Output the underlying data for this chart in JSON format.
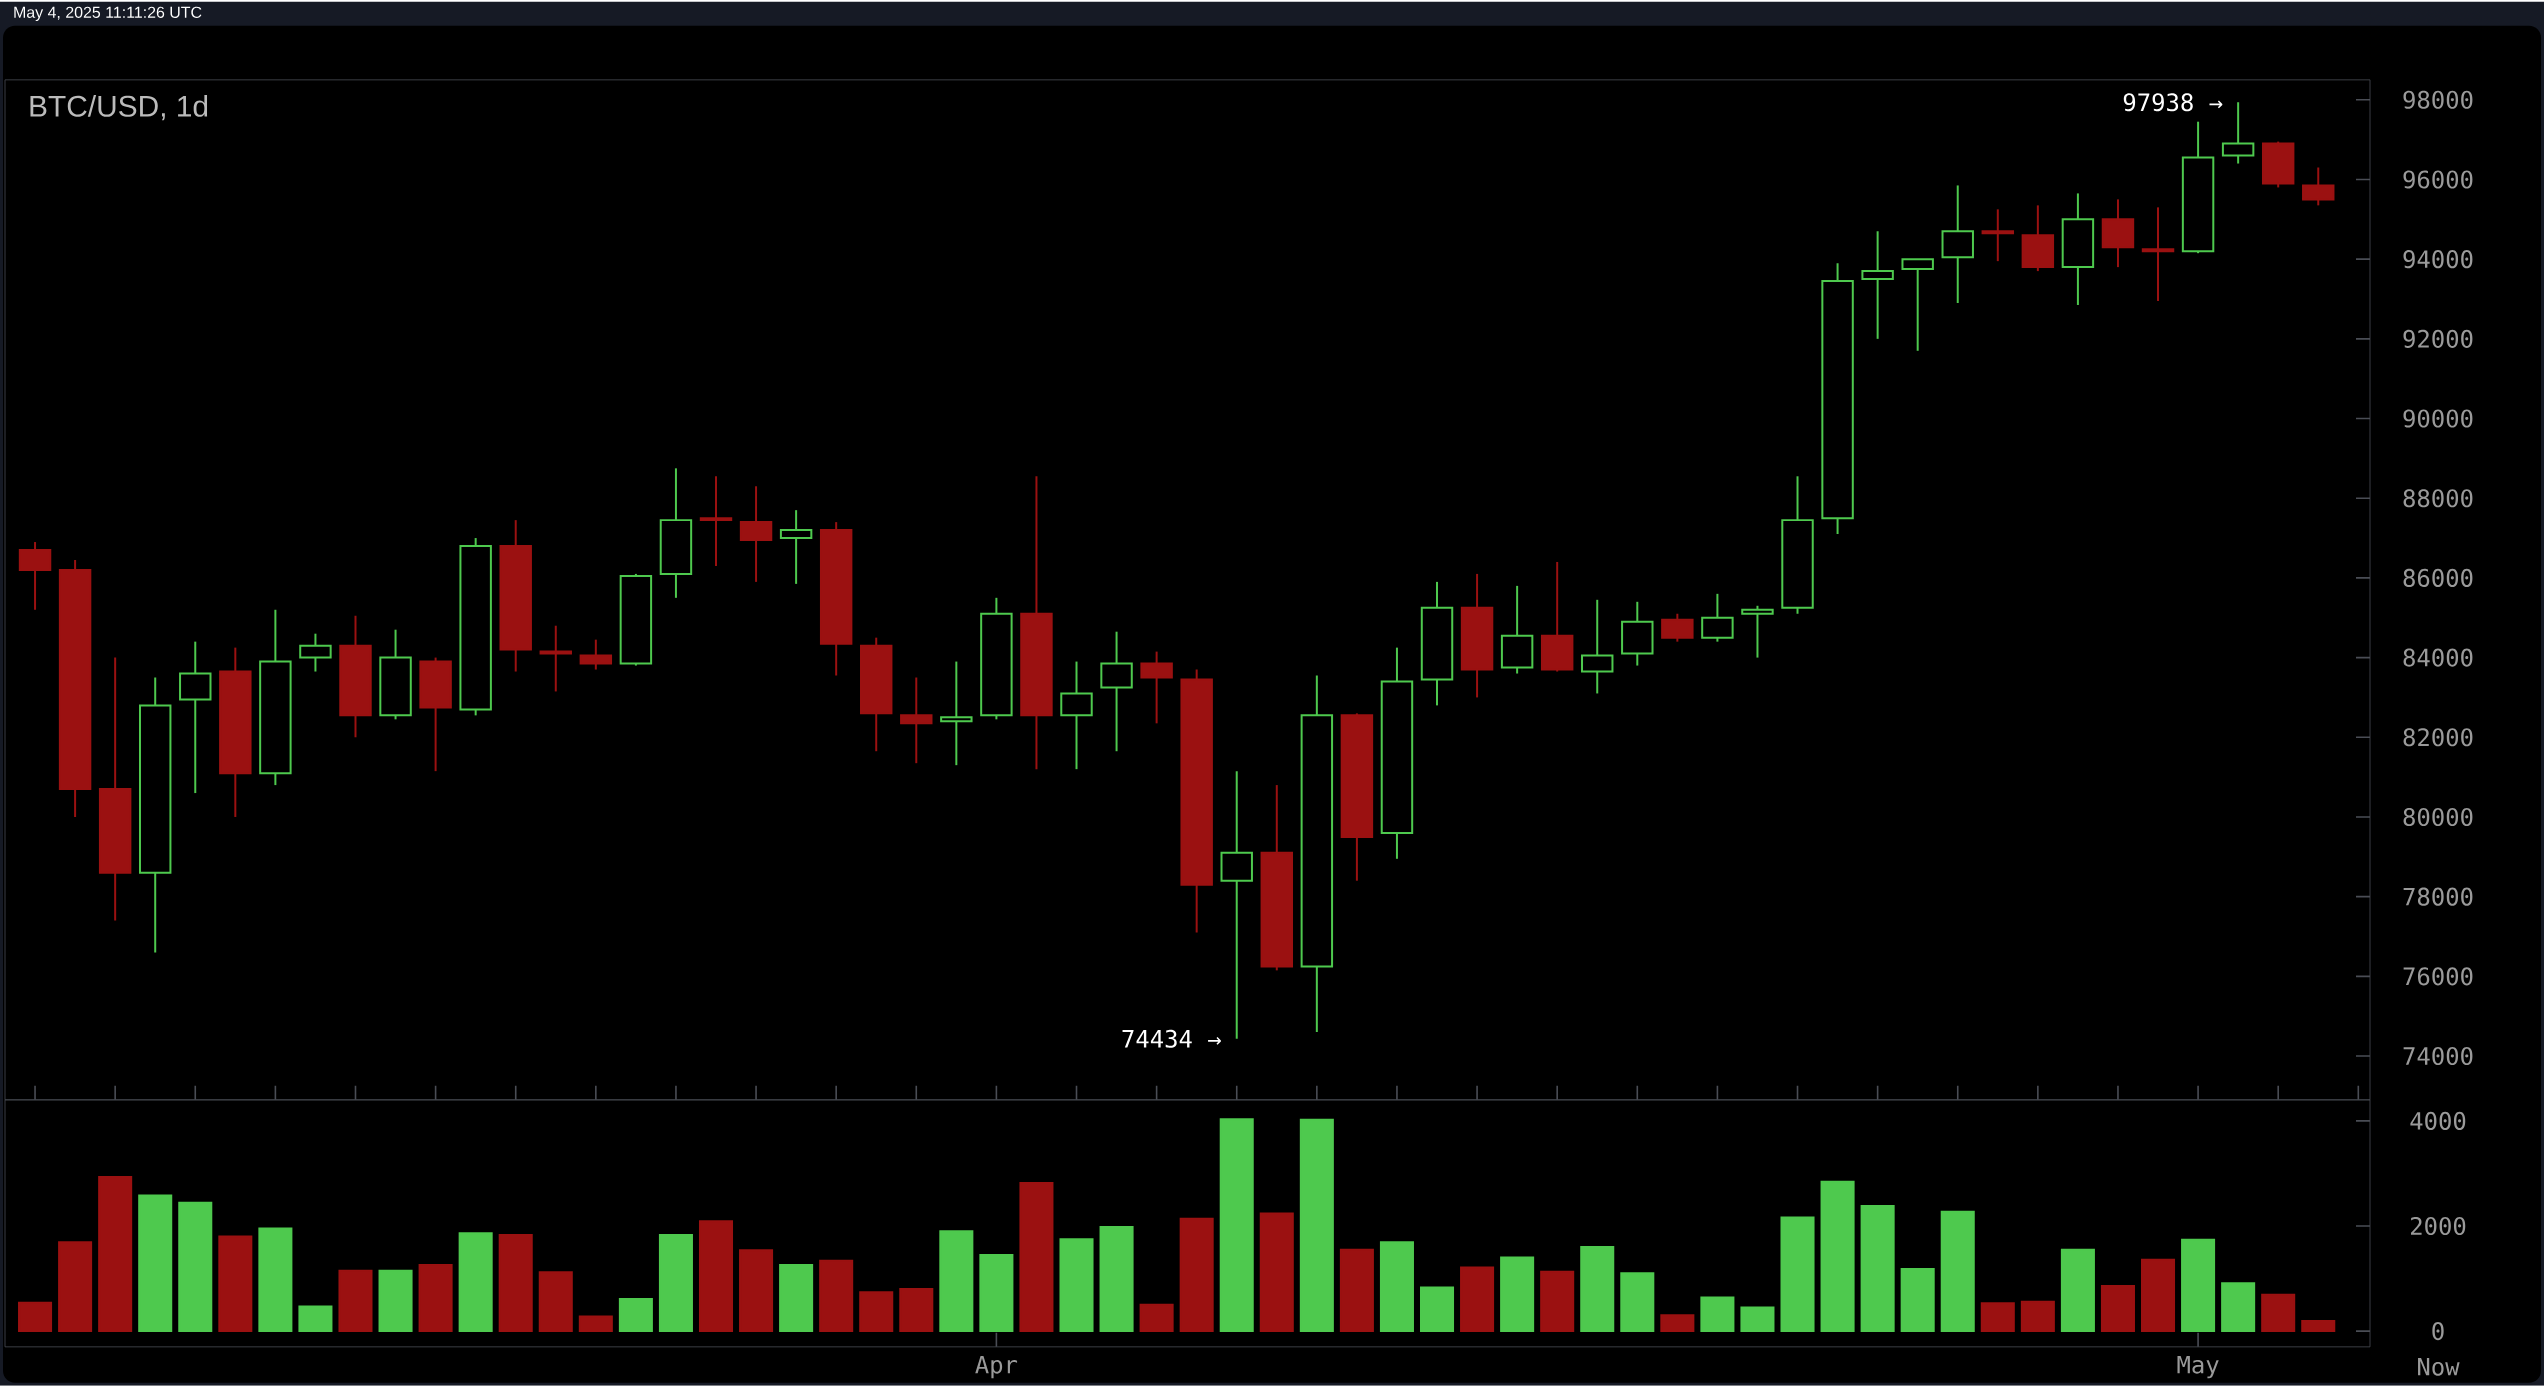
{
  "chart_data": [
    {
      "type": "candlestick",
      "title": "BTC/USD, 1d",
      "subtitle": "May 4, 2025 11:11:26 UTC",
      "x": [
        "2025-03-08",
        "2025-03-09",
        "2025-03-10",
        "2025-03-11",
        "2025-03-12",
        "2025-03-13",
        "2025-03-14",
        "2025-03-15",
        "2025-03-16",
        "2025-03-17",
        "2025-03-18",
        "2025-03-19",
        "2025-03-20",
        "2025-03-21",
        "2025-03-22",
        "2025-03-23",
        "2025-03-24",
        "2025-03-25",
        "2025-03-26",
        "2025-03-27",
        "2025-03-28",
        "2025-03-29",
        "2025-03-30",
        "2025-03-31",
        "2025-04-01",
        "2025-04-02",
        "2025-04-03",
        "2025-04-04",
        "2025-04-05",
        "2025-04-06",
        "2025-04-07",
        "2025-04-08",
        "2025-04-09",
        "2025-04-10",
        "2025-04-11",
        "2025-04-12",
        "2025-04-13",
        "2025-04-14",
        "2025-04-15",
        "2025-04-16",
        "2025-04-17",
        "2025-04-18",
        "2025-04-19",
        "2025-04-20",
        "2025-04-21",
        "2025-04-22",
        "2025-04-23",
        "2025-04-24",
        "2025-04-25",
        "2025-04-26",
        "2025-04-27",
        "2025-04-28",
        "2025-04-29",
        "2025-04-30",
        "2025-05-01",
        "2025-05-02",
        "2025-05-03",
        "2025-05-04"
      ],
      "ohlc": [
        [
          86700,
          86900,
          85200,
          86200
        ],
        [
          86200,
          86450,
          80000,
          80700
        ],
        [
          80700,
          84000,
          77400,
          78600
        ],
        [
          78600,
          83500,
          76600,
          82800
        ],
        [
          82950,
          84400,
          80600,
          83600
        ],
        [
          83650,
          84250,
          80000,
          81100
        ],
        [
          81100,
          85200,
          80800,
          83900
        ],
        [
          84000,
          84600,
          83650,
          84300
        ],
        [
          84300,
          85050,
          82000,
          82550
        ],
        [
          82550,
          84700,
          82450,
          84000
        ],
        [
          83900,
          84000,
          81150,
          82750
        ],
        [
          82700,
          87000,
          82550,
          86800
        ],
        [
          86800,
          87450,
          83650,
          84200
        ],
        [
          84150,
          84800,
          83150,
          84100
        ],
        [
          84050,
          84450,
          83700,
          83850
        ],
        [
          83850,
          86100,
          83800,
          86050
        ],
        [
          86100,
          88750,
          85500,
          87450
        ],
        [
          87500,
          88550,
          86300,
          87450
        ],
        [
          87400,
          88300,
          85900,
          86950
        ],
        [
          87000,
          87700,
          85850,
          87200
        ],
        [
          87200,
          87400,
          83550,
          84350
        ],
        [
          84300,
          84500,
          81650,
          82600
        ],
        [
          82550,
          83500,
          81350,
          82350
        ],
        [
          82400,
          83900,
          81300,
          82500
        ],
        [
          82550,
          85500,
          82450,
          85100
        ],
        [
          85100,
          88550,
          81200,
          82550
        ],
        [
          82550,
          83900,
          81200,
          83100
        ],
        [
          83250,
          84650,
          81650,
          83850
        ],
        [
          83850,
          84150,
          82350,
          83500
        ],
        [
          83450,
          83700,
          77100,
          78300
        ],
        [
          78400,
          81150,
          74434,
          79100
        ],
        [
          79100,
          80800,
          76150,
          76250
        ],
        [
          76250,
          83550,
          74600,
          82550
        ],
        [
          82550,
          82600,
          78400,
          79500
        ],
        [
          79600,
          84250,
          78950,
          83400
        ],
        [
          83450,
          85900,
          82800,
          85250
        ],
        [
          85250,
          86100,
          83000,
          83700
        ],
        [
          83750,
          85800,
          83600,
          84550
        ],
        [
          84550,
          86400,
          83650,
          83700
        ],
        [
          83650,
          85450,
          83100,
          84050
        ],
        [
          84100,
          85400,
          83800,
          84900
        ],
        [
          84950,
          85100,
          84400,
          84500
        ],
        [
          84500,
          85600,
          84400,
          85000
        ],
        [
          85100,
          85300,
          84000,
          85200
        ],
        [
          85250,
          88550,
          85100,
          87450
        ],
        [
          87500,
          93900,
          87100,
          93450
        ],
        [
          93500,
          94700,
          92000,
          93700
        ],
        [
          93750,
          94000,
          91700,
          94000
        ],
        [
          94050,
          95850,
          92900,
          94700
        ],
        [
          94700,
          95250,
          93950,
          94650
        ],
        [
          94600,
          95350,
          93700,
          93800
        ],
        [
          93800,
          95650,
          92850,
          95000
        ],
        [
          95000,
          95500,
          93800,
          94300
        ],
        [
          94250,
          95300,
          92950,
          94200
        ],
        [
          94200,
          97450,
          94150,
          96550
        ],
        [
          96600,
          97938,
          96400,
          96900
        ],
        [
          96900,
          96950,
          95800,
          95900
        ],
        [
          95850,
          96300,
          95350,
          95500
        ]
      ],
      "colors": [
        "#9b1111",
        "#9b1111",
        "#9b1111",
        "#4ec94e",
        "#4ec94e",
        "#9b1111",
        "#4ec94e",
        "#4ec94e",
        "#9b1111",
        "#4ec94e",
        "#9b1111",
        "#4ec94e",
        "#9b1111",
        "#9b1111",
        "#9b1111",
        "#4ec94e",
        "#4ec94e",
        "#9b1111",
        "#9b1111",
        "#4ec94e",
        "#9b1111",
        "#9b1111",
        "#9b1111",
        "#4ec94e",
        "#4ec94e",
        "#9b1111",
        "#4ec94e",
        "#4ec94e",
        "#9b1111",
        "#9b1111",
        "#4ec94e",
        "#9b1111",
        "#4ec94e",
        "#9b1111",
        "#4ec94e",
        "#4ec94e",
        "#9b1111",
        "#4ec94e",
        "#9b1111",
        "#4ec94e",
        "#4ec94e",
        "#9b1111",
        "#4ec94e",
        "#4ec94e",
        "#4ec94e",
        "#4ec94e",
        "#4ec94e",
        "#4ec94e",
        "#4ec94e",
        "#9b1111",
        "#9b1111",
        "#4ec94e",
        "#9b1111",
        "#9b1111",
        "#4ec94e",
        "#4ec94e",
        "#9b1111",
        "#9b1111"
      ],
      "xlim": [
        "2025-03-07T06:00",
        "2025-05-05T07:00"
      ],
      "ylim": [
        72900,
        98500
      ],
      "yticks": [
        74000,
        76000,
        78000,
        80000,
        82000,
        84000,
        86000,
        88000,
        90000,
        92000,
        94000,
        96000,
        98000
      ],
      "tick_labels": "y",
      "annotations": [
        {
          "text": "97938 →",
          "x": "2025-05-02",
          "y": 97938
        },
        {
          "text": "74434 →",
          "x": "2025-04-07",
          "y": 74434
        }
      ]
    },
    {
      "type": "bar",
      "x": [
        "2025-03-08",
        "2025-03-09",
        "2025-03-10",
        "2025-03-11",
        "2025-03-12",
        "2025-03-13",
        "2025-03-14",
        "2025-03-15",
        "2025-03-16",
        "2025-03-17",
        "2025-03-18",
        "2025-03-19",
        "2025-03-20",
        "2025-03-21",
        "2025-03-22",
        "2025-03-23",
        "2025-03-24",
        "2025-03-25",
        "2025-03-26",
        "2025-03-27",
        "2025-03-28",
        "2025-03-29",
        "2025-03-30",
        "2025-03-31",
        "2025-04-01",
        "2025-04-02",
        "2025-04-03",
        "2025-04-04",
        "2025-04-05",
        "2025-04-06",
        "2025-04-07",
        "2025-04-08",
        "2025-04-09",
        "2025-04-10",
        "2025-04-11",
        "2025-04-12",
        "2025-04-13",
        "2025-04-14",
        "2025-04-15",
        "2025-04-16",
        "2025-04-17",
        "2025-04-18",
        "2025-04-19",
        "2025-04-20",
        "2025-04-21",
        "2025-04-22",
        "2025-04-23",
        "2025-04-24",
        "2025-04-25",
        "2025-04-26",
        "2025-04-27",
        "2025-04-28",
        "2025-04-29",
        "2025-04-30",
        "2025-05-01",
        "2025-05-02",
        "2025-05-03",
        "2025-05-04"
      ],
      "values": [
        540,
        1690,
        2930,
        2580,
        2440,
        1800,
        1950,
        470,
        1150,
        1150,
        1260,
        1860,
        1830,
        1120,
        280,
        610,
        1830,
        2090,
        1540,
        1260,
        1340,
        740,
        800,
        1900,
        1450,
        2820,
        1750,
        1980,
        500,
        2140,
        4030,
        2240,
        4020,
        1550,
        1690,
        830,
        1210,
        1400,
        1130,
        1600,
        1100,
        300,
        640,
        450,
        2160,
        2840,
        2380,
        1180,
        2270,
        530,
        560,
        1550,
        860,
        1360,
        1740,
        910,
        690,
        190
      ],
      "colors": [
        "#9b1111",
        "#9b1111",
        "#9b1111",
        "#4ec94e",
        "#4ec94e",
        "#9b1111",
        "#4ec94e",
        "#4ec94e",
        "#9b1111",
        "#4ec94e",
        "#9b1111",
        "#4ec94e",
        "#9b1111",
        "#9b1111",
        "#9b1111",
        "#4ec94e",
        "#4ec94e",
        "#9b1111",
        "#9b1111",
        "#4ec94e",
        "#9b1111",
        "#9b1111",
        "#9b1111",
        "#4ec94e",
        "#4ec94e",
        "#9b1111",
        "#4ec94e",
        "#4ec94e",
        "#9b1111",
        "#9b1111",
        "#4ec94e",
        "#9b1111",
        "#4ec94e",
        "#9b1111",
        "#4ec94e",
        "#4ec94e",
        "#9b1111",
        "#4ec94e",
        "#9b1111",
        "#4ec94e",
        "#4ec94e",
        "#9b1111",
        "#4ec94e",
        "#4ec94e",
        "#4ec94e",
        "#4ec94e",
        "#4ec94e",
        "#4ec94e",
        "#4ec94e",
        "#9b1111",
        "#9b1111",
        "#4ec94e",
        "#9b1111",
        "#9b1111",
        "#4ec94e",
        "#4ec94e",
        "#9b1111",
        "#9b1111"
      ],
      "xlim": [
        "2025-03-07T06:00",
        "2025-05-05T07:00"
      ],
      "ylim": [
        -300,
        4400
      ],
      "yticks": [
        0,
        2000,
        4000
      ],
      "xticks": [
        {
          "value": "2025-04-01",
          "label": "Apr"
        },
        {
          "value": "2025-05-01",
          "label": "May"
        }
      ],
      "annotations": [
        "Now"
      ]
    }
  ]
}
